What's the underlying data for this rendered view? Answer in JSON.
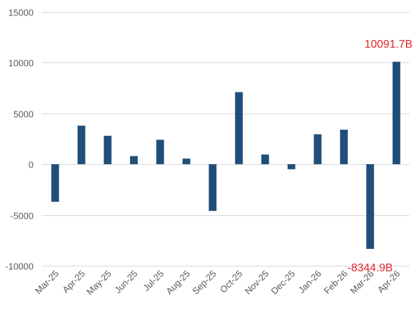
{
  "chart_data": {
    "type": "bar",
    "title": "",
    "xlabel": "",
    "ylabel": "",
    "ylim": [
      -10000,
      15000
    ],
    "yticks": [
      15000,
      10000,
      5000,
      0,
      -5000,
      -10000
    ],
    "ytick_labels": [
      "15000",
      "10000",
      "5000",
      "0",
      "-5000",
      "-10000"
    ],
    "grid": true,
    "categories": [
      "Mar-25",
      "Apr-25",
      "May-25",
      "Jun-25",
      "Jul-25",
      "Aug-25",
      "Sep-25",
      "Oct-25",
      "Nov-25",
      "Dec-25",
      "Jan-26",
      "Feb-26",
      "Mar-26",
      "Apr-26"
    ],
    "values": [
      -3700,
      3800,
      2800,
      800,
      2400,
      550,
      -4600,
      7100,
      950,
      -500,
      2950,
      3400,
      -8344.9,
      10091.7
    ],
    "annotations": [
      {
        "index": 13,
        "text": "10091.7B",
        "color": "#e0262b"
      },
      {
        "index": 12,
        "text": "-8344.9B",
        "color": "#e0262b"
      }
    ],
    "colors": {
      "bar": "#1f4e79",
      "grid": "#d9d9d9",
      "axis_text": "#595959"
    }
  }
}
